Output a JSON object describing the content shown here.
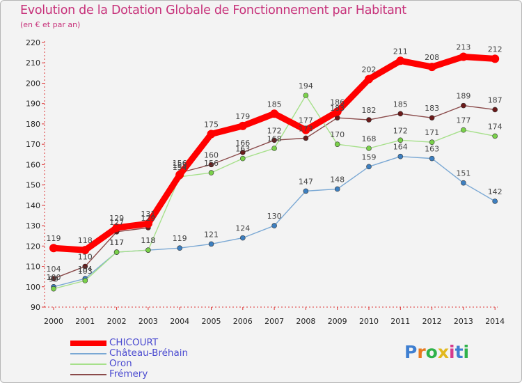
{
  "chart_data": {
    "type": "line",
    "title": "Evolution de la Dotation Globale de Fonctionnement par Habitant",
    "subtitle": "(en € et par an)",
    "xlabel": "",
    "ylabel": "",
    "ylim": [
      90,
      220
    ],
    "yticks": [
      90,
      100,
      110,
      120,
      130,
      140,
      150,
      160,
      170,
      180,
      190,
      200,
      210,
      220
    ],
    "x": [
      "2000",
      "2001",
      "2002",
      "2003",
      "2004",
      "2005",
      "2006",
      "2007",
      "2008",
      "2009",
      "2010",
      "2011",
      "2012",
      "2013",
      "2014"
    ],
    "grid": false,
    "legend_position": "bottom-left",
    "series": [
      {
        "name": "Frémery",
        "color": "#6b1a1a",
        "line_color": "#8a4a4a",
        "values": [
          104,
          110,
          127,
          129,
          156,
          160,
          166,
          172,
          173,
          183,
          182,
          185,
          183,
          189,
          187
        ]
      },
      {
        "name": "Château-Bréhain",
        "color": "#3d7fc0",
        "line_color": "#7aa8d4",
        "values": [
          100,
          104,
          117,
          118,
          119,
          121,
          124,
          130,
          147,
          148,
          159,
          164,
          163,
          151,
          142
        ]
      },
      {
        "name": "Oron",
        "color": "#7ad14a",
        "line_color": "#a6e08a",
        "values": [
          99,
          103,
          117,
          118,
          154,
          156,
          163,
          168,
          194,
          170,
          168,
          172,
          171,
          177,
          174
        ]
      },
      {
        "name": "CHICOURT",
        "color": "#ff0000",
        "line_color": "#ff0000",
        "values": [
          119,
          118,
          129,
          131,
          155,
          175,
          179,
          185,
          177,
          186,
          202,
          211,
          208,
          213,
          212
        ]
      }
    ]
  },
  "legend": {
    "items": [
      "CHICOURT",
      "Château-Bréhain",
      "Oron",
      "Frémery"
    ]
  },
  "logo": {
    "text": "Proxiti",
    "letters": [
      "P",
      "r",
      "o",
      "x",
      "i",
      "t",
      "i"
    ],
    "colors": [
      "#3f7fd1",
      "#e87a1e",
      "#2fb24a",
      "#e2b81e",
      "#d63a8c",
      "#3f7fd1",
      "#2fb24a"
    ]
  }
}
